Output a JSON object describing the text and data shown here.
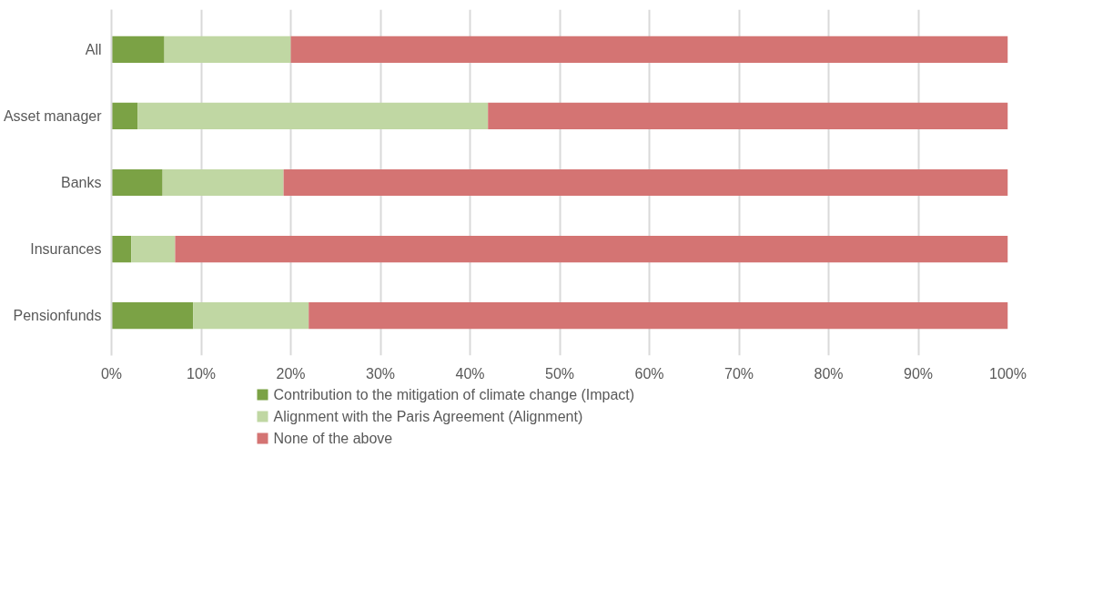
{
  "chart_data": {
    "type": "bar",
    "orientation": "horizontal",
    "stacked": true,
    "categories": [
      "All",
      "Asset manager",
      "Banks",
      "Insurances",
      "Pensionfunds"
    ],
    "series": [
      {
        "name": "Contribution to the mitigation of climate change (Impact)",
        "color": "#7ba245",
        "values": [
          5.9,
          2.9,
          5.7,
          2.2,
          9.1
        ]
      },
      {
        "name": "Alignment with the Paris Agreement (Alignment)",
        "color": "#c0d7a3",
        "values": [
          14.1,
          39.1,
          13.5,
          4.9,
          12.9
        ]
      },
      {
        "name": "None of the above",
        "color": "#d47473",
        "values": [
          80.0,
          58.0,
          80.8,
          92.9,
          78.0
        ]
      }
    ],
    "xlim": [
      0,
      100
    ],
    "xticks": [
      {
        "value": 0,
        "label": "0%"
      },
      {
        "value": 10,
        "label": "10%"
      },
      {
        "value": 20,
        "label": "20%"
      },
      {
        "value": 30,
        "label": "30%"
      },
      {
        "value": 40,
        "label": "40%"
      },
      {
        "value": 50,
        "label": "50%"
      },
      {
        "value": 60,
        "label": "60%"
      },
      {
        "value": 70,
        "label": "70%"
      },
      {
        "value": 80,
        "label": "80%"
      },
      {
        "value": 90,
        "label": "90%"
      },
      {
        "value": 100,
        "label": "100%"
      }
    ],
    "grid": "x",
    "legend": "bottom"
  }
}
